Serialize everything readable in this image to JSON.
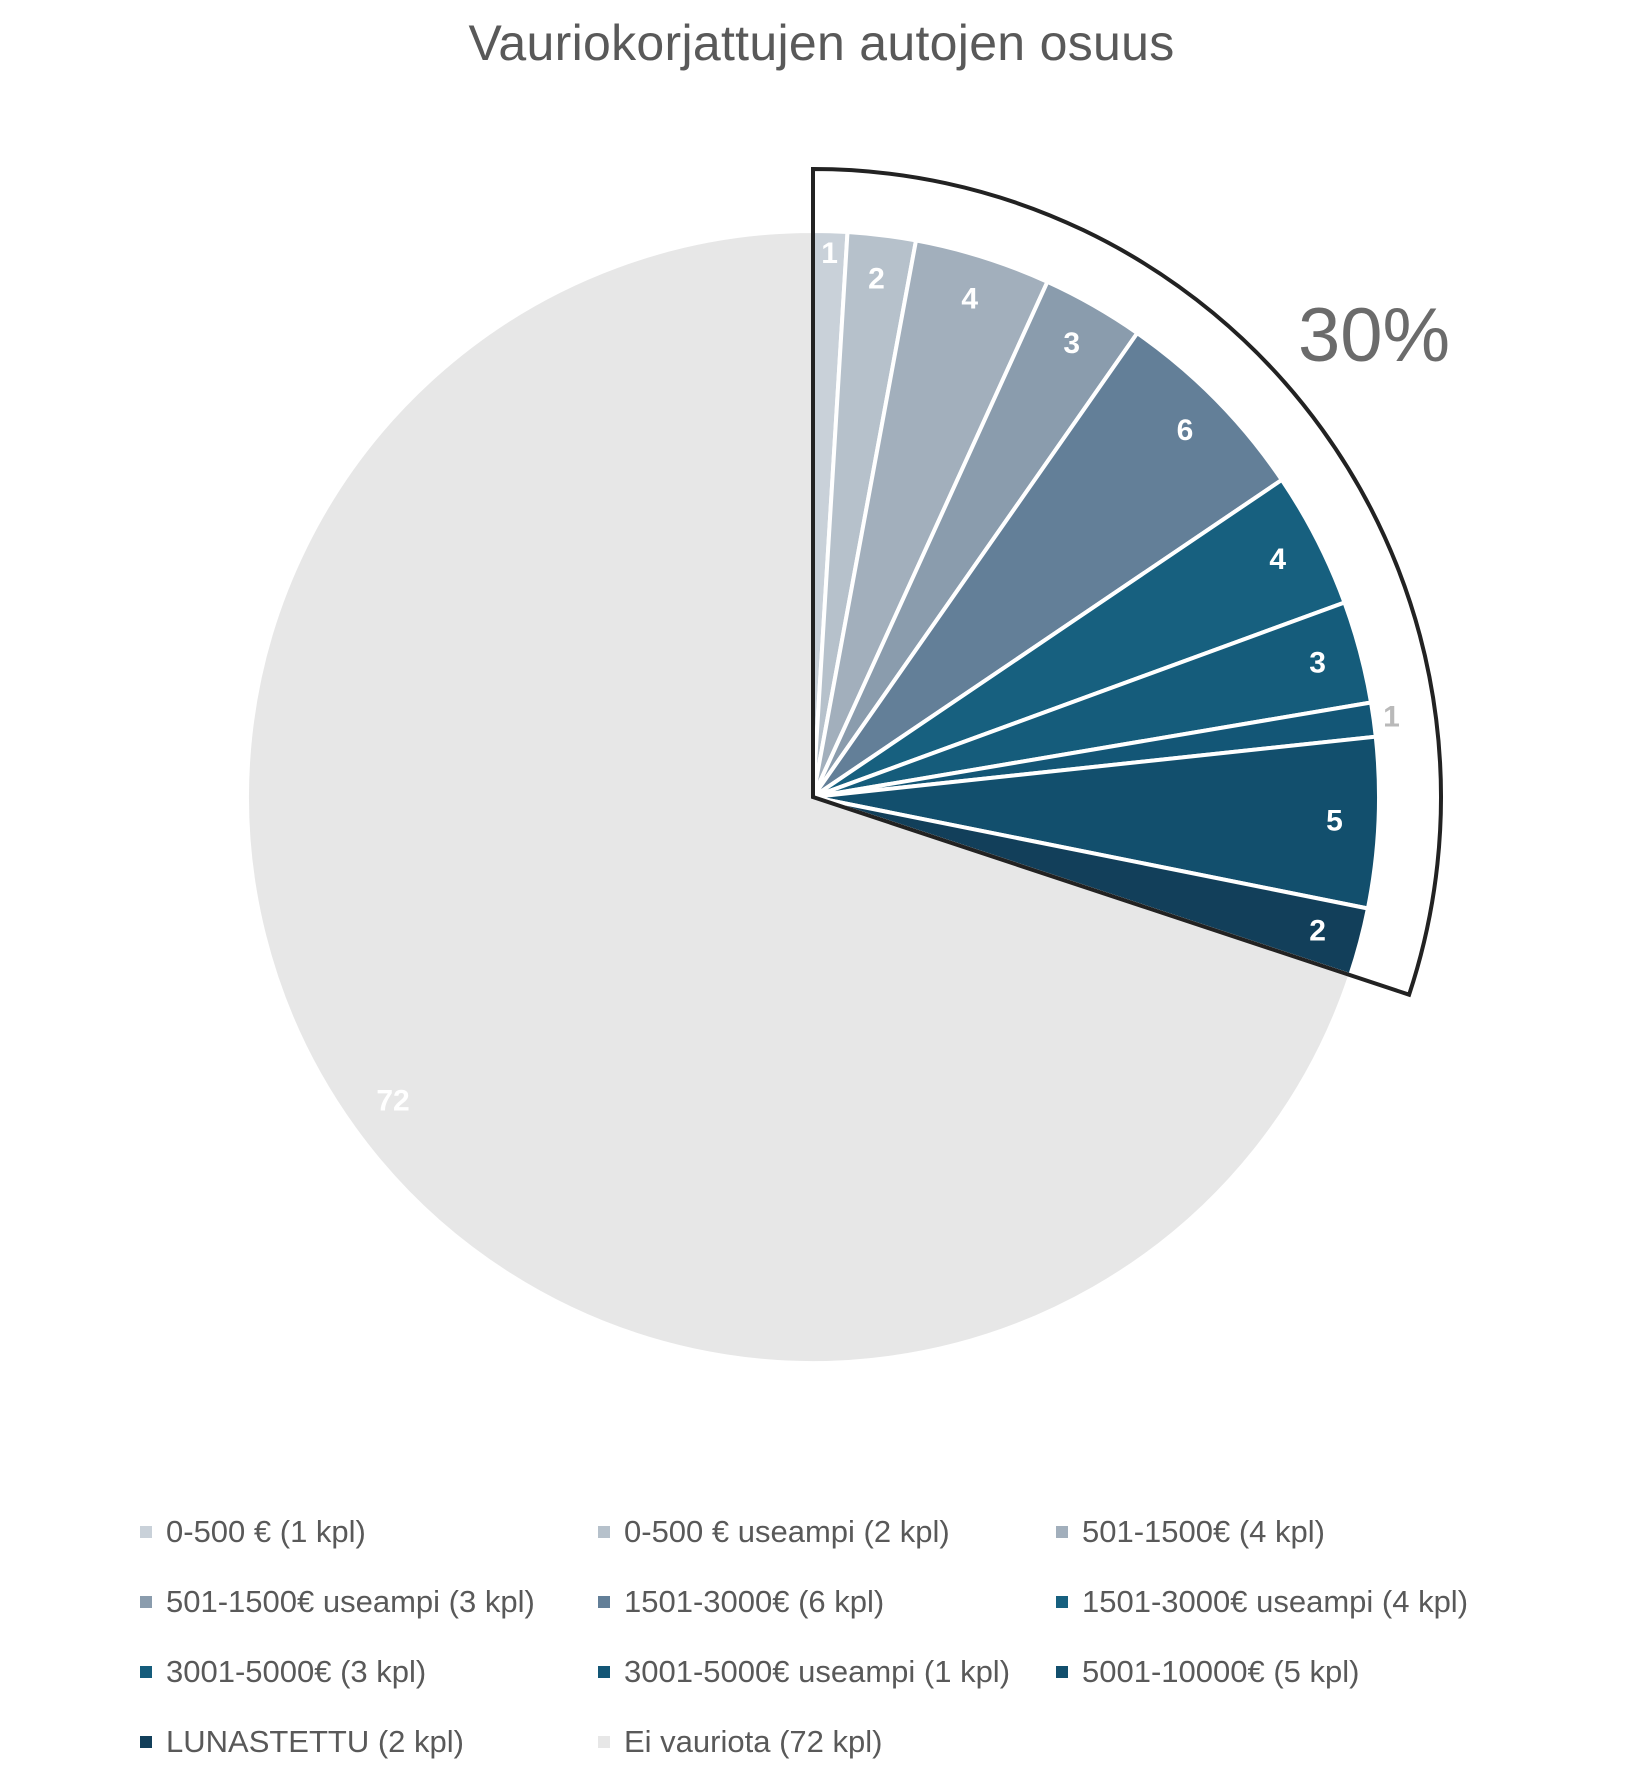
{
  "chart_data": {
    "type": "pie",
    "title": "Vauriokorjattujen autojen osuus",
    "slices": [
      {
        "label": "0-500 € (1 kpl)",
        "value": 1,
        "data_label": "1",
        "color": "#c9d1d9",
        "label_color": "#ffffff"
      },
      {
        "label": "0-500 € useampi (2 kpl)",
        "value": 2,
        "data_label": "2",
        "color": "#b6c1cb",
        "label_color": "#ffffff"
      },
      {
        "label": "501-1500€ (4 kpl)",
        "value": 4,
        "data_label": "4",
        "color": "#a2afbc",
        "label_color": "#ffffff"
      },
      {
        "label": "501-1500€ useampi (3 kpl)",
        "value": 3,
        "data_label": "3",
        "color": "#8a9cad",
        "label_color": "#ffffff"
      },
      {
        "label": "1501-3000€ (6 kpl)",
        "value": 6,
        "data_label": "6",
        "color": "#637f98",
        "label_color": "#ffffff"
      },
      {
        "label": "1501-3000€ useampi (4 kpl)",
        "value": 4,
        "data_label": "4",
        "color": "#17607f",
        "label_color": "#ffffff"
      },
      {
        "label": "3001-5000€ (3 kpl)",
        "value": 3,
        "data_label": "3",
        "color": "#155c7b",
        "label_color": "#ffffff"
      },
      {
        "label": "3001-5000€ useampi (1 kpl)",
        "value": 1,
        "data_label": "1",
        "color": "#135676",
        "label_color": "#b9b9b9"
      },
      {
        "label": "5001-10000€ (5 kpl)",
        "value": 5,
        "data_label": "5",
        "color": "#124f6d",
        "label_color": "#ffffff"
      },
      {
        "label": "LUNASTETTU (2 kpl)",
        "value": 2,
        "data_label": "2",
        "color": "#123f5a",
        "label_color": "#ffffff"
      },
      {
        "label": "Ei vauriota (72 kpl)",
        "value": 72,
        "data_label": "72",
        "color": "#e7e7e7",
        "label_color": "#ffffff"
      }
    ],
    "start_angle_deg": 0,
    "direction": "clockwise",
    "callout": {
      "text": "30%",
      "covers_slices": 10
    },
    "legend_position": "bottom"
  }
}
